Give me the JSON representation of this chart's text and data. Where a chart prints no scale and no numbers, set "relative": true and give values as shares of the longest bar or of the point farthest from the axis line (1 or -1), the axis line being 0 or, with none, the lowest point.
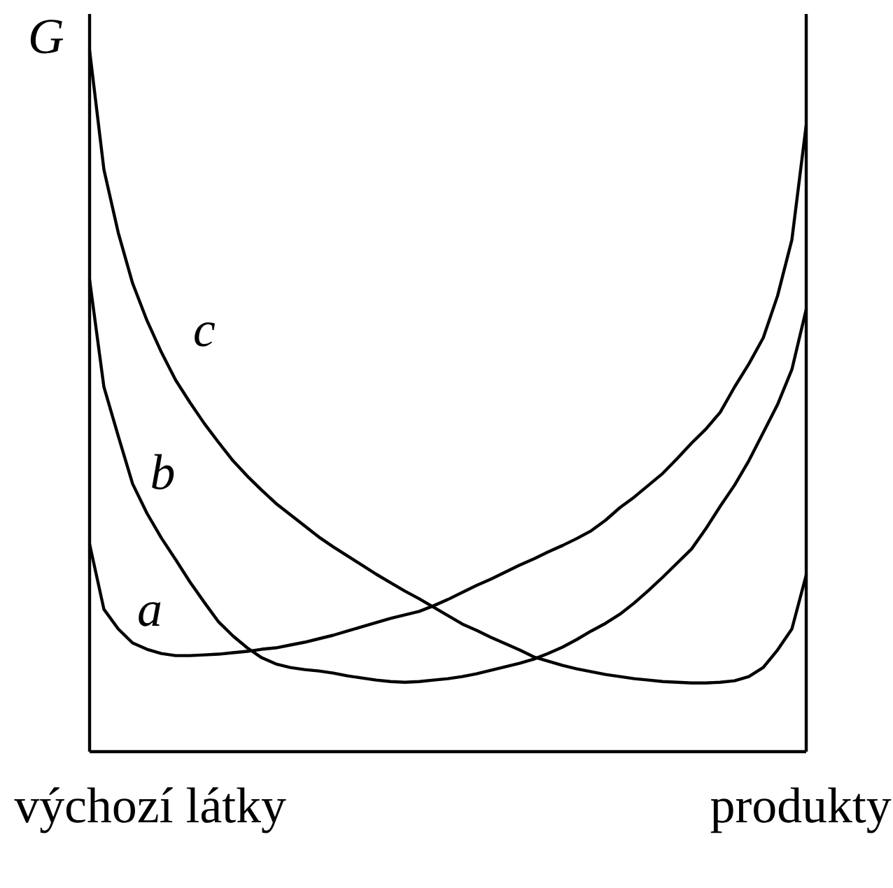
{
  "chart_data": {
    "type": "line",
    "relative": true,
    "ylabel": "G",
    "annotations": [
      "výchozí látky",
      "produkty"
    ],
    "categories": [
      null,
      null,
      null,
      null,
      null,
      null,
      null,
      null,
      null,
      null,
      null,
      null,
      null,
      null,
      null,
      null,
      null,
      null,
      null,
      null,
      null,
      null,
      null,
      null,
      null,
      null,
      null,
      null,
      null,
      null,
      null,
      null,
      null,
      null,
      null,
      null,
      null,
      null,
      null,
      null,
      null,
      null,
      null,
      null,
      null,
      null,
      null,
      null,
      null,
      null,
      null
    ],
    "series": [
      {
        "name": "a",
        "color": "#000000",
        "values": [
          0.296,
          0.203,
          0.175,
          0.155,
          0.146,
          0.14,
          0.137,
          0.137,
          0.138,
          0.139,
          0.141,
          0.143,
          0.146,
          0.148,
          0.152,
          0.156,
          0.161,
          0.166,
          0.172,
          0.178,
          0.184,
          0.19,
          0.195,
          0.2,
          0.208,
          0.217,
          0.227,
          0.237,
          0.246,
          0.256,
          0.266,
          0.275,
          0.285,
          0.294,
          0.304,
          0.315,
          0.33,
          0.348,
          0.363,
          0.38,
          0.397,
          0.418,
          0.44,
          0.46,
          0.484,
          0.52,
          0.553,
          0.59,
          0.65,
          0.73,
          0.894
        ]
      },
      {
        "name": "b",
        "color": "#000000",
        "values": [
          0.673,
          0.52,
          0.45,
          0.382,
          0.34,
          0.305,
          0.274,
          0.242,
          0.213,
          0.185,
          0.165,
          0.148,
          0.134,
          0.125,
          0.12,
          0.117,
          0.115,
          0.112,
          0.108,
          0.105,
          0.102,
          0.1,
          0.099,
          0.1,
          0.102,
          0.104,
          0.107,
          0.111,
          0.116,
          0.121,
          0.126,
          0.132,
          0.14,
          0.149,
          0.16,
          0.172,
          0.183,
          0.196,
          0.212,
          0.23,
          0.249,
          0.269,
          0.289,
          0.318,
          0.35,
          0.38,
          0.415,
          0.455,
          0.495,
          0.545,
          0.631
        ]
      },
      {
        "name": "c",
        "color": "#000000",
        "values": [
          1,
          0.83,
          0.74,
          0.668,
          0.615,
          0.57,
          0.53,
          0.498,
          0.468,
          0.441,
          0.415,
          0.393,
          0.373,
          0.354,
          0.338,
          0.322,
          0.306,
          0.292,
          0.279,
          0.266,
          0.253,
          0.241,
          0.229,
          0.218,
          0.206,
          0.194,
          0.182,
          0.173,
          0.163,
          0.154,
          0.145,
          0.135,
          0.129,
          0.123,
          0.118,
          0.114,
          0.11,
          0.107,
          0.104,
          0.102,
          0.1,
          0.099,
          0.098,
          0.098,
          0.099,
          0.101,
          0.107,
          0.12,
          0.145,
          0.175,
          0.252
        ]
      }
    ]
  }
}
